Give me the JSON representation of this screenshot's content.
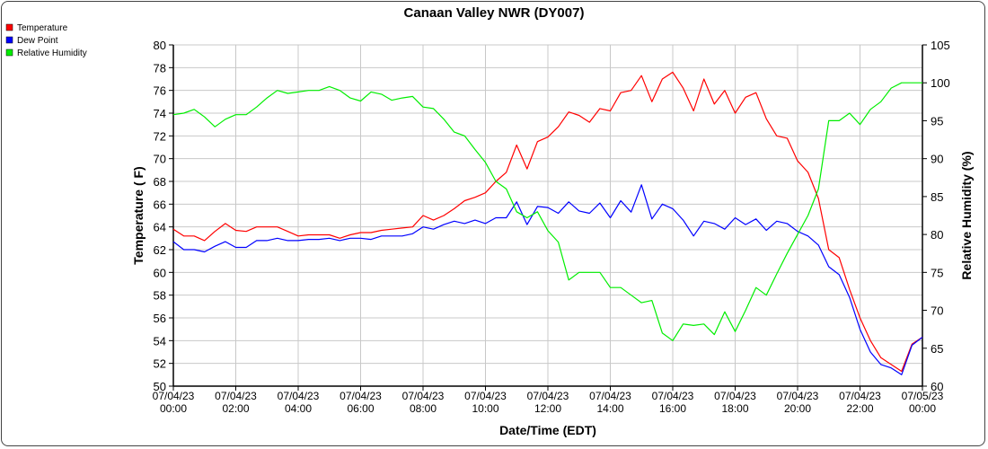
{
  "chart_data": {
    "type": "line",
    "title": "Canaan Valley NWR (DY007)",
    "xlabel": "Date/Time (EDT)",
    "ylabel": "Temperature ( F)",
    "ylabel_right": "Relative Humidity (%)",
    "xlim_hours": [
      0,
      24
    ],
    "ylim": [
      50,
      80
    ],
    "ylim_right": [
      60,
      105
    ],
    "grid": true,
    "legend_placement": "top-left",
    "x_ticks": [
      {
        "hour": 0,
        "date": "07/04/23",
        "time": "00:00"
      },
      {
        "hour": 2,
        "date": "07/04/23",
        "time": "02:00"
      },
      {
        "hour": 4,
        "date": "07/04/23",
        "time": "04:00"
      },
      {
        "hour": 6,
        "date": "07/04/23",
        "time": "06:00"
      },
      {
        "hour": 8,
        "date": "07/04/23",
        "time": "08:00"
      },
      {
        "hour": 10,
        "date": "07/04/23",
        "time": "10:00"
      },
      {
        "hour": 12,
        "date": "07/04/23",
        "time": "12:00"
      },
      {
        "hour": 14,
        "date": "07/04/23",
        "time": "14:00"
      },
      {
        "hour": 16,
        "date": "07/04/23",
        "time": "16:00"
      },
      {
        "hour": 18,
        "date": "07/04/23",
        "time": "18:00"
      },
      {
        "hour": 20,
        "date": "07/04/23",
        "time": "20:00"
      },
      {
        "hour": 22,
        "date": "07/04/23",
        "time": "22:00"
      },
      {
        "hour": 24,
        "date": "07/05/23",
        "time": "00:00"
      }
    ],
    "y_ticks": [
      "50",
      "52",
      "54",
      "56",
      "58",
      "60",
      "62",
      "64",
      "66",
      "68",
      "70",
      "72",
      "74",
      "76",
      "78",
      "80"
    ],
    "y_ticks_right": [
      "60",
      "65",
      "70",
      "75",
      "80",
      "85",
      "90",
      "95",
      "100",
      "105"
    ],
    "x_step_hours": 0.3333333,
    "series": [
      {
        "name": "Temperature",
        "color": "#ff0000",
        "axis": "left",
        "values": [
          63.8,
          63.2,
          63.2,
          62.8,
          63.6,
          64.3,
          63.7,
          63.6,
          64.0,
          64.0,
          64.0,
          63.6,
          63.2,
          63.3,
          63.3,
          63.3,
          63.0,
          63.3,
          63.5,
          63.5,
          63.7,
          63.8,
          63.9,
          64.0,
          65.0,
          64.6,
          65.0,
          65.6,
          66.3,
          66.6,
          67.0,
          68.0,
          68.8,
          71.2,
          69.1,
          71.5,
          71.9,
          72.8,
          74.1,
          73.8,
          73.2,
          74.4,
          74.2,
          75.8,
          76.0,
          77.3,
          75.0,
          77.0,
          77.6,
          76.2,
          74.2,
          77.0,
          74.8,
          76.0,
          74.0,
          75.4,
          75.8,
          73.5,
          72.0,
          71.8,
          69.8,
          68.8,
          66.5,
          62.0,
          61.3,
          58.5,
          56.0,
          54.0,
          52.5,
          51.9,
          51.3,
          53.7,
          54.3
        ]
      },
      {
        "name": "Dew Point",
        "color": "#0000ff",
        "axis": "left",
        "values": [
          62.7,
          62.0,
          62.0,
          61.8,
          62.3,
          62.7,
          62.2,
          62.2,
          62.8,
          62.8,
          63.0,
          62.8,
          62.8,
          62.9,
          62.9,
          63.0,
          62.8,
          63.0,
          63.0,
          62.9,
          63.2,
          63.2,
          63.2,
          63.4,
          64.0,
          63.8,
          64.2,
          64.5,
          64.3,
          64.6,
          64.3,
          64.8,
          64.8,
          66.2,
          64.2,
          65.8,
          65.7,
          65.2,
          66.2,
          65.4,
          65.2,
          66.1,
          64.8,
          66.3,
          65.3,
          67.7,
          64.7,
          66.0,
          65.6,
          64.6,
          63.2,
          64.5,
          64.3,
          63.8,
          64.8,
          64.2,
          64.7,
          63.7,
          64.5,
          64.3,
          63.6,
          63.2,
          62.4,
          60.5,
          59.8,
          57.8,
          55.0,
          53.0,
          51.9,
          51.6,
          51.0,
          53.6,
          54.3
        ]
      },
      {
        "name": "Relative Humidity",
        "color": "#00ee00",
        "axis": "right",
        "values": [
          95.8,
          96.0,
          96.5,
          95.5,
          94.2,
          95.2,
          95.8,
          95.8,
          96.8,
          98.0,
          99.0,
          98.6,
          98.8,
          99.0,
          99.0,
          99.5,
          99.0,
          98.0,
          97.6,
          98.8,
          98.5,
          97.7,
          98.0,
          98.2,
          96.8,
          96.6,
          95.2,
          93.5,
          93.0,
          91.2,
          89.5,
          87.0,
          86.0,
          83.0,
          82.2,
          83.0,
          80.5,
          79.0,
          74.0,
          75.0,
          75.0,
          75.0,
          73.0,
          73.0,
          72.0,
          71.0,
          71.3,
          67.0,
          66.0,
          68.2,
          68.0,
          68.2,
          66.8,
          69.8,
          67.2,
          70.0,
          73.0,
          72.0,
          74.8,
          77.5,
          80.0,
          82.5,
          86.0,
          95.0,
          95.0,
          96.0,
          94.5,
          96.5,
          97.5,
          99.3,
          100,
          100,
          100
        ]
      }
    ]
  }
}
